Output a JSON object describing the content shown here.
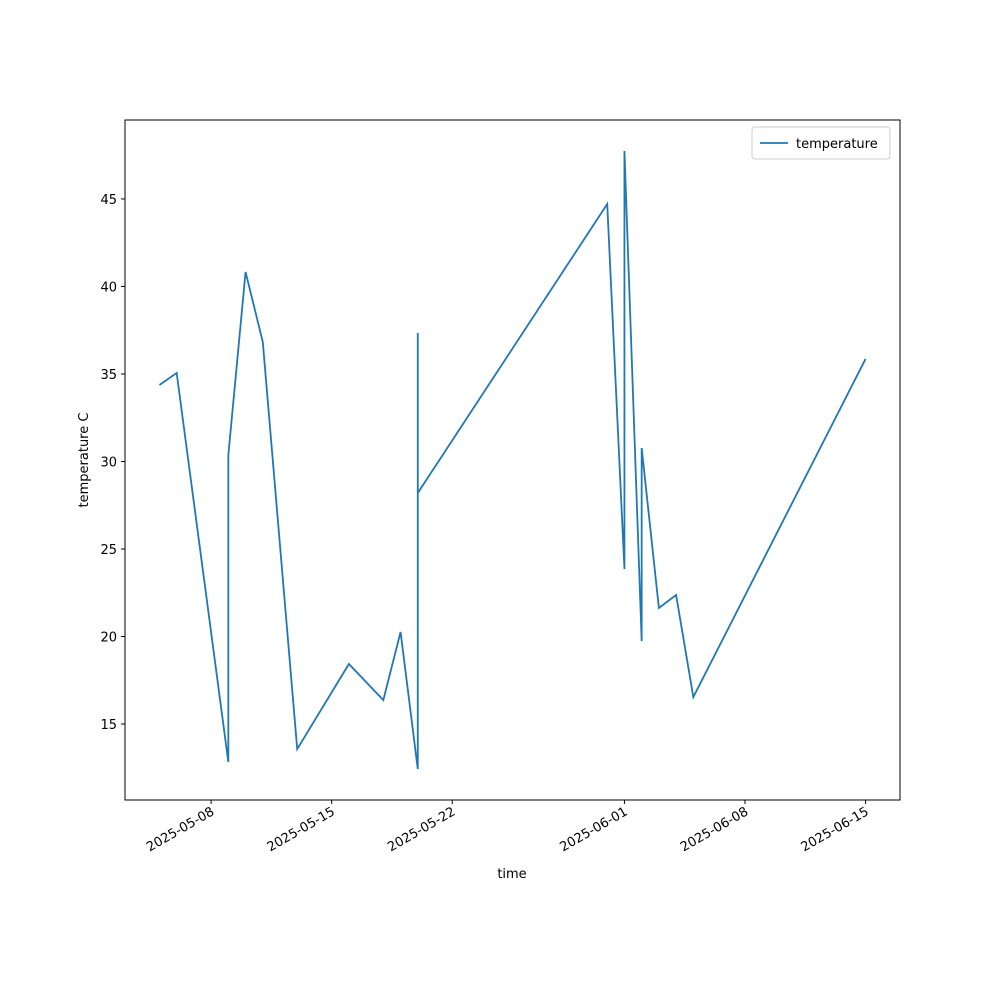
{
  "chart_data": {
    "type": "line",
    "x_label": "time",
    "y_label": "temperature C",
    "x": [
      "2025-05-05",
      "2025-05-06",
      "2025-05-09",
      "2025-05-09",
      "2025-05-10",
      "2025-05-11",
      "2025-05-13",
      "2025-05-16",
      "2025-05-18",
      "2025-05-19",
      "2025-05-20",
      "2025-05-20",
      "2025-05-20",
      "2025-05-31",
      "2025-06-01",
      "2025-06-01",
      "2025-06-02",
      "2025-06-02",
      "2025-06-03",
      "2025-06-04",
      "2025-06-05",
      "2025-06-15"
    ],
    "series": [
      {
        "name": "temperature",
        "color": "#1f77b4",
        "values": [
          34.37,
          35.06,
          12.83,
          30.37,
          40.83,
          36.83,
          13.57,
          18.43,
          16.37,
          20.26,
          12.43,
          37.34,
          28.2,
          44.71,
          23.86,
          47.74,
          19.74,
          30.77,
          21.63,
          22.37,
          16.54,
          35.86
        ]
      }
    ],
    "xlim": [
      "2025-05-03",
      "2025-06-17"
    ],
    "xticks": [
      "2025-05-08",
      "2025-05-15",
      "2025-05-22",
      "2025-06-01",
      "2025-06-08",
      "2025-06-15"
    ],
    "ylim": [
      10.66,
      49.51
    ],
    "yticks": [
      15,
      20,
      25,
      30,
      35,
      40,
      45
    ],
    "grid": false,
    "legend": "upper right"
  }
}
